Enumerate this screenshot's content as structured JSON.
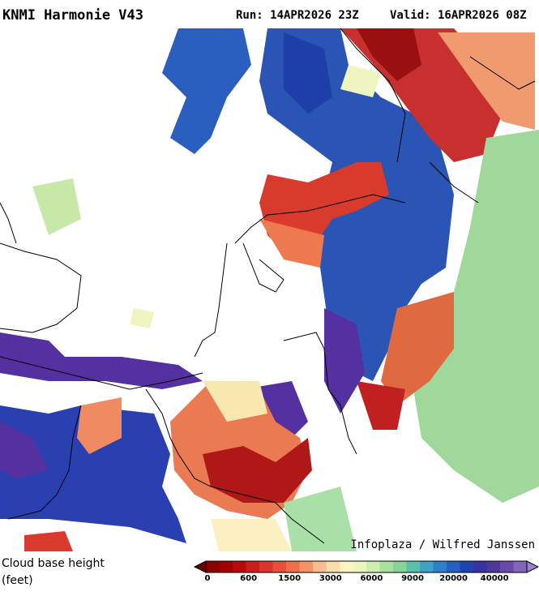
{
  "header": {
    "title": "KNMI Harmonie V43",
    "run": "Run: 14APR2026 23Z",
    "valid": "Valid: 16APR2026 08Z"
  },
  "credit": "Infoplaza / Wilfred Janssen",
  "legend": {
    "title": "Cloud base height",
    "unit": "(feet)",
    "ticks": [
      0,
      600,
      1500,
      3000,
      6000,
      9000,
      20000,
      40000
    ]
  }
}
